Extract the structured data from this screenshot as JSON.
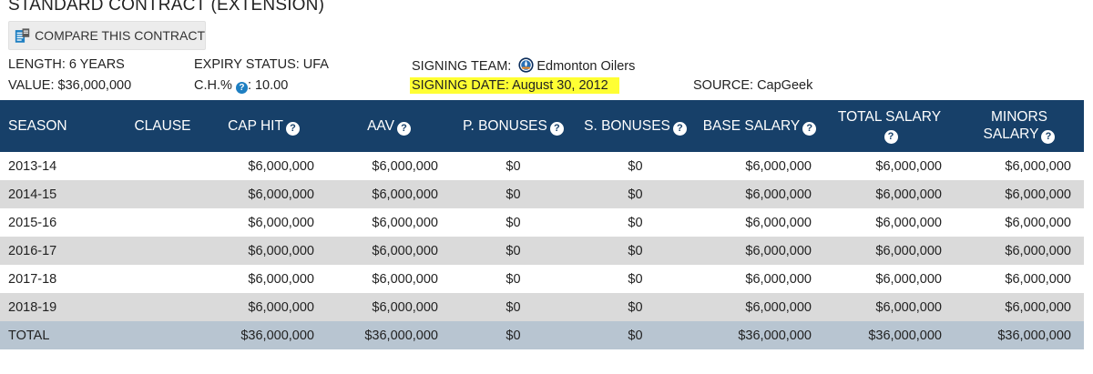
{
  "header": {
    "title": "STANDARD CONTRACT (EXTENSION)",
    "compare_label": "COMPARE THIS CONTRACT"
  },
  "info": {
    "length_label": "LENGTH:",
    "length_value": "6 YEARS",
    "value_label": "VALUE:",
    "value_value": "$36,000,000",
    "expiry_label": "EXPIRY STATUS:",
    "expiry_value": "UFA",
    "ch_label": "C.H.%",
    "ch_value": ": 10.00",
    "team_label": "SIGNING TEAM:",
    "team_value": "Edmonton Oilers",
    "signing_date": "SIGNING DATE: August 30, 2012",
    "source_label": "SOURCE:",
    "source_value": "CapGeek"
  },
  "icons": {
    "help": "?",
    "help_color": "#1e7fc2",
    "header_bg": "#174069",
    "highlight": "#ffff33"
  },
  "table": {
    "headers": {
      "season": "SEASON",
      "clause": "CLAUSE",
      "cap_hit": "CAP HIT",
      "aav": "AAV",
      "p_bonuses": "P. BONUSES",
      "s_bonuses": "S. BONUSES",
      "base_salary": "BASE SALARY",
      "total_salary": "TOTAL SALARY",
      "minors_salary_1": "MINORS",
      "minors_salary_2": "SALARY"
    },
    "rows": [
      {
        "season": "2013-14",
        "clause": "",
        "cap_hit": "$6,000,000",
        "aav": "$6,000,000",
        "p_bonuses": "$0",
        "s_bonuses": "$0",
        "base_salary": "$6,000,000",
        "total_salary": "$6,000,000",
        "minors_salary": "$6,000,000"
      },
      {
        "season": "2014-15",
        "clause": "",
        "cap_hit": "$6,000,000",
        "aav": "$6,000,000",
        "p_bonuses": "$0",
        "s_bonuses": "$0",
        "base_salary": "$6,000,000",
        "total_salary": "$6,000,000",
        "minors_salary": "$6,000,000"
      },
      {
        "season": "2015-16",
        "clause": "",
        "cap_hit": "$6,000,000",
        "aav": "$6,000,000",
        "p_bonuses": "$0",
        "s_bonuses": "$0",
        "base_salary": "$6,000,000",
        "total_salary": "$6,000,000",
        "minors_salary": "$6,000,000"
      },
      {
        "season": "2016-17",
        "clause": "",
        "cap_hit": "$6,000,000",
        "aav": "$6,000,000",
        "p_bonuses": "$0",
        "s_bonuses": "$0",
        "base_salary": "$6,000,000",
        "total_salary": "$6,000,000",
        "minors_salary": "$6,000,000"
      },
      {
        "season": "2017-18",
        "clause": "",
        "cap_hit": "$6,000,000",
        "aav": "$6,000,000",
        "p_bonuses": "$0",
        "s_bonuses": "$0",
        "base_salary": "$6,000,000",
        "total_salary": "$6,000,000",
        "minors_salary": "$6,000,000"
      },
      {
        "season": "2018-19",
        "clause": "",
        "cap_hit": "$6,000,000",
        "aav": "$6,000,000",
        "p_bonuses": "$0",
        "s_bonuses": "$0",
        "base_salary": "$6,000,000",
        "total_salary": "$6,000,000",
        "minors_salary": "$6,000,000"
      }
    ],
    "total": {
      "season": "TOTAL",
      "clause": "",
      "cap_hit": "$36,000,000",
      "aav": "$36,000,000",
      "p_bonuses": "$0",
      "s_bonuses": "$0",
      "base_salary": "$36,000,000",
      "total_salary": "$36,000,000",
      "minors_salary": "$36,000,000"
    }
  }
}
